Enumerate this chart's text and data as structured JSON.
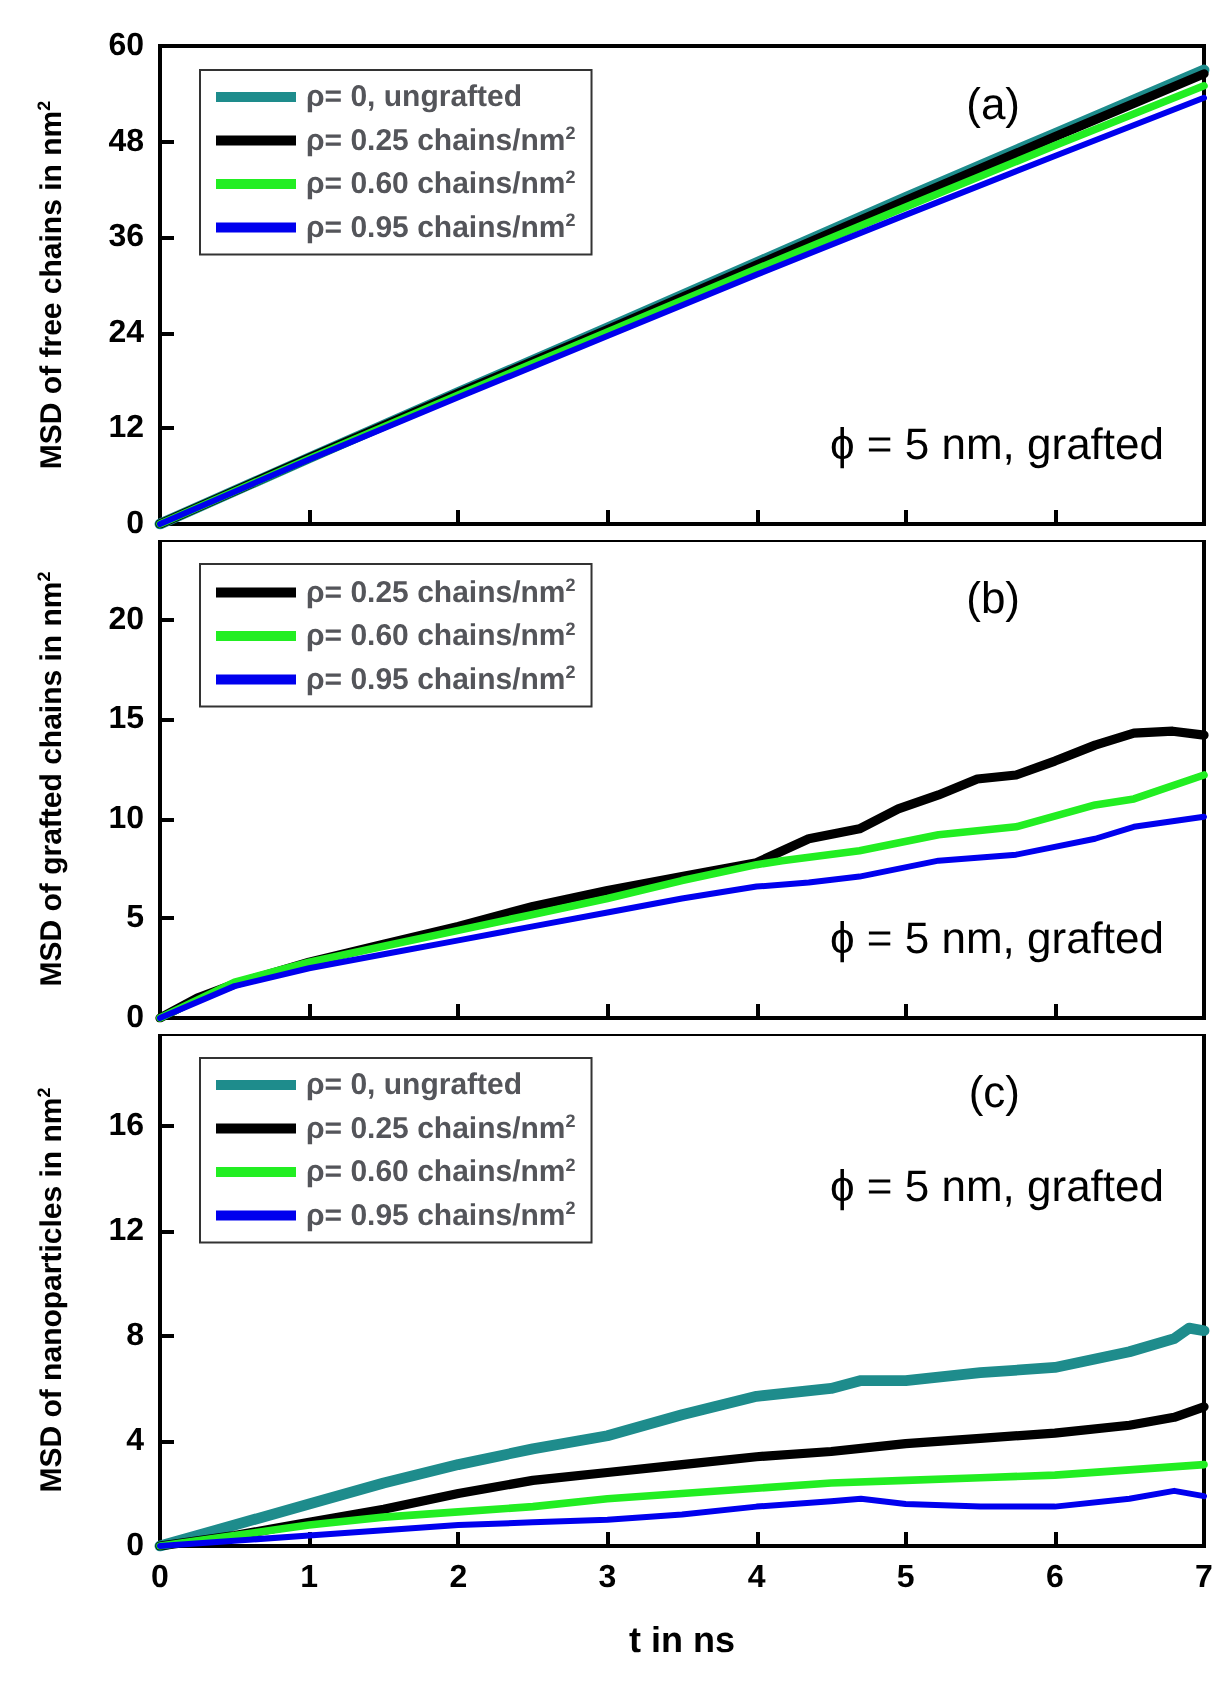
{
  "chart_data": [
    {
      "type": "line",
      "ylabel": "MSD of free chains in nm$^{2}$",
      "annotations": [
        "(a)",
        "ϕ = 5 nm, grafted"
      ],
      "xlim": [
        0,
        7
      ],
      "xticks": [
        0,
        1,
        2,
        3,
        4,
        5,
        6,
        7
      ],
      "ylim": [
        0,
        60
      ],
      "yticks": [
        0,
        12,
        24,
        36,
        48,
        60
      ],
      "tick_labels": "y",
      "grid": false,
      "legend": "top left",
      "marker": "none",
      "line_style": "solid",
      "x": [
        0,
        1,
        2,
        3,
        4,
        5,
        6,
        7
      ],
      "series": [
        {
          "name": "ρ= 0, ungrafted",
          "color": "#1e8c8c",
          "values": [
            0,
            8.3,
            16.5,
            24.6,
            32.8,
            41,
            49,
            57
          ]
        },
        {
          "name": "ρ= 0.25 chains/nm$^{2}$",
          "color": "#000000",
          "values": [
            0,
            8.3,
            16.4,
            24.4,
            32.5,
            40.6,
            48.6,
            56.5
          ]
        },
        {
          "name": "ρ= 0.60 chains/nm$^{2}$",
          "color": "#22ee22",
          "values": [
            0,
            8.2,
            16.2,
            24.1,
            32,
            39.8,
            47.5,
            55
          ]
        },
        {
          "name": "ρ= 0.95 chains/nm$^{2}$",
          "color": "#0000ee",
          "values": [
            0,
            8.1,
            15.9,
            23.6,
            31.3,
            38.8,
            46.2,
            53.5
          ]
        }
      ]
    },
    {
      "type": "line",
      "ylabel": "MSD of grafted chains in nm$^{2}$",
      "annotations": [
        "(b)",
        "ϕ = 5 nm, grafted"
      ],
      "xlim": [
        0,
        7
      ],
      "xticks": [
        0,
        1,
        2,
        3,
        4,
        5,
        6,
        7
      ],
      "ylim": [
        0,
        24
      ],
      "yticks": [
        0,
        5,
        10,
        15,
        20
      ],
      "tick_labels": "y",
      "grid": false,
      "legend": "top left",
      "marker": "none",
      "line_style": "solid",
      "series": [
        {
          "name": "ρ= 0.25 chains/nm$^{2}$",
          "color": "#000000",
          "x": [
            0,
            0.25,
            0.5,
            1,
            1.5,
            2,
            2.5,
            3,
            3.5,
            4,
            4.35,
            4.69,
            4.95,
            5.22,
            5.48,
            5.74,
            6,
            6.27,
            6.53,
            6.79,
            7
          ],
          "values": [
            0,
            1.0,
            1.7,
            2.8,
            3.7,
            4.6,
            5.6,
            6.4,
            7.1,
            7.8,
            9.0,
            9.5,
            10.5,
            11.2,
            12.0,
            12.2,
            12.9,
            13.7,
            14.3,
            14.4,
            14.2
          ]
        },
        {
          "name": "ρ= 0.60 chains/nm$^{2}$",
          "color": "#22ee22",
          "x": [
            0,
            0.5,
            1,
            1.5,
            2,
            2.5,
            3,
            3.5,
            4,
            4.17,
            4.69,
            5.22,
            5.74,
            6.27,
            6.53,
            7
          ],
          "values": [
            0,
            1.8,
            2.8,
            3.6,
            4.4,
            5.2,
            6.0,
            6.9,
            7.7,
            7.9,
            8.4,
            9.2,
            9.6,
            10.7,
            11.0,
            12.2
          ]
        },
        {
          "name": "ρ= 0.95 chains/nm$^{2}$",
          "color": "#0000ee",
          "x": [
            0,
            0.5,
            1,
            1.5,
            2,
            2.5,
            3,
            3.5,
            4,
            4.35,
            4.69,
            5.22,
            5.74,
            6.27,
            6.53,
            7
          ],
          "values": [
            0,
            1.6,
            2.5,
            3.2,
            3.9,
            4.6,
            5.3,
            6.0,
            6.6,
            6.8,
            7.1,
            7.9,
            8.2,
            9.0,
            9.6,
            10.1
          ]
        }
      ]
    },
    {
      "type": "line",
      "xlabel": "t in ns",
      "ylabel": "MSD of nanoparticles in nm$^{2}$",
      "annotations": [
        "(c)",
        "ϕ = 5 nm, grafted"
      ],
      "xlim": [
        0,
        7
      ],
      "xticks": [
        0,
        1,
        2,
        3,
        4,
        5,
        6,
        7
      ],
      "ylim": [
        0,
        19.5
      ],
      "yticks": [
        0,
        4,
        8,
        12,
        16
      ],
      "grid": false,
      "legend": "top left",
      "marker": "none",
      "line_style": "solid",
      "series": [
        {
          "name": "ρ= 0, ungrafted",
          "color": "#1e8c8c",
          "x": [
            0,
            0.5,
            1,
            1.5,
            2,
            2.5,
            3,
            3.5,
            4,
            4.5,
            4.7,
            5,
            5.5,
            6,
            6.5,
            6.8,
            6.9,
            7
          ],
          "values": [
            0,
            0.8,
            1.6,
            2.4,
            3.1,
            3.7,
            4.2,
            5.0,
            5.7,
            6.0,
            6.3,
            6.3,
            6.6,
            6.8,
            7.4,
            7.9,
            8.3,
            8.2
          ]
        },
        {
          "name": "ρ= 0.25 chains/nm$^{2}$",
          "color": "#000000",
          "x": [
            0,
            0.5,
            1,
            1.5,
            2,
            2.5,
            3,
            3.5,
            4,
            4.5,
            5,
            5.5,
            6,
            6.5,
            6.8,
            7
          ],
          "values": [
            0,
            0.4,
            0.9,
            1.4,
            2.0,
            2.5,
            2.8,
            3.1,
            3.4,
            3.6,
            3.9,
            4.1,
            4.3,
            4.6,
            4.9,
            5.3
          ]
        },
        {
          "name": "ρ= 0.60 chains/nm$^{2}$",
          "color": "#22ee22",
          "x": [
            0,
            0.5,
            1,
            1.5,
            2,
            2.5,
            3,
            3.5,
            4,
            4.5,
            5,
            5.5,
            6,
            6.5,
            7
          ],
          "values": [
            0,
            0.4,
            0.8,
            1.1,
            1.3,
            1.5,
            1.8,
            2.0,
            2.2,
            2.4,
            2.5,
            2.6,
            2.7,
            2.9,
            3.1
          ]
        },
        {
          "name": "ρ= 0.95 chains/nm$^{2}$",
          "color": "#0000ee",
          "x": [
            0,
            0.5,
            1,
            1.5,
            2,
            2.5,
            3,
            3.5,
            4,
            4.5,
            4.7,
            5,
            5.5,
            6,
            6.5,
            6.8,
            7
          ],
          "values": [
            0,
            0.2,
            0.4,
            0.6,
            0.8,
            0.9,
            1.0,
            1.2,
            1.5,
            1.7,
            1.8,
            1.6,
            1.5,
            1.5,
            1.8,
            2.1,
            1.9
          ]
        }
      ]
    }
  ]
}
